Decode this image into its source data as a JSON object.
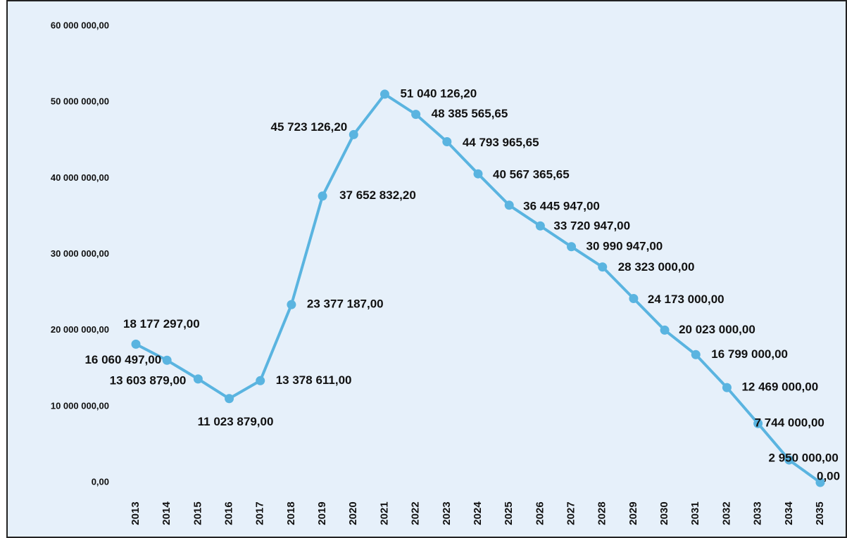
{
  "chart_data": {
    "type": "line",
    "categories": [
      "2013",
      "2014",
      "2015",
      "2016",
      "2017",
      "2018",
      "2019",
      "2020",
      "2021",
      "2022",
      "2023",
      "2024",
      "2025",
      "2026",
      "2027",
      "2028",
      "2029",
      "2030",
      "2031",
      "2032",
      "2033",
      "2034",
      "2035"
    ],
    "series": [
      {
        "color": "#5ab4e0",
        "values": [
          18177297,
          16060497,
          13603879,
          11023879,
          13378611,
          23377187,
          37652832.2,
          45723126.2,
          51040126.2,
          48385565.65,
          44793965.65,
          40567365.65,
          36445947,
          33720947,
          30990947,
          28323000,
          24173000,
          20023000,
          16799000,
          12469000,
          7744000,
          2950000,
          0
        ],
        "value_labels": [
          "18 177 297,00",
          "16 060 497,00",
          "13 603 879,00",
          "11 023 879,00",
          "13 378 611,00",
          "23 377 187,00",
          "37 652 832,20",
          "45 723 126,20",
          "51 040 126,20",
          "48 385 565,65",
          "44 793 965,65",
          "40 567 365,65",
          "36 445 947,00",
          "33 720 947,00",
          "30 990 947,00",
          "28 323 000,00",
          "24 173 000,00",
          "20 023 000,00",
          "16 799 000,00",
          "12 469 000,00",
          "7 744 000,00",
          "2 950 000,00",
          "0,00"
        ]
      }
    ],
    "ylim": [
      0,
      60000000
    ],
    "yticks": [
      {
        "value": 0,
        "label": "0,00"
      },
      {
        "value": 10000000,
        "label": "10 000 000,00"
      },
      {
        "value": 20000000,
        "label": "20 000 000,00"
      },
      {
        "value": 30000000,
        "label": "30 000 000,00"
      },
      {
        "value": 40000000,
        "label": "40 000 000,00"
      },
      {
        "value": 50000000,
        "label": "50 000 000,00"
      },
      {
        "value": 60000000,
        "label": "60 000 000,00"
      }
    ],
    "grid": false
  }
}
